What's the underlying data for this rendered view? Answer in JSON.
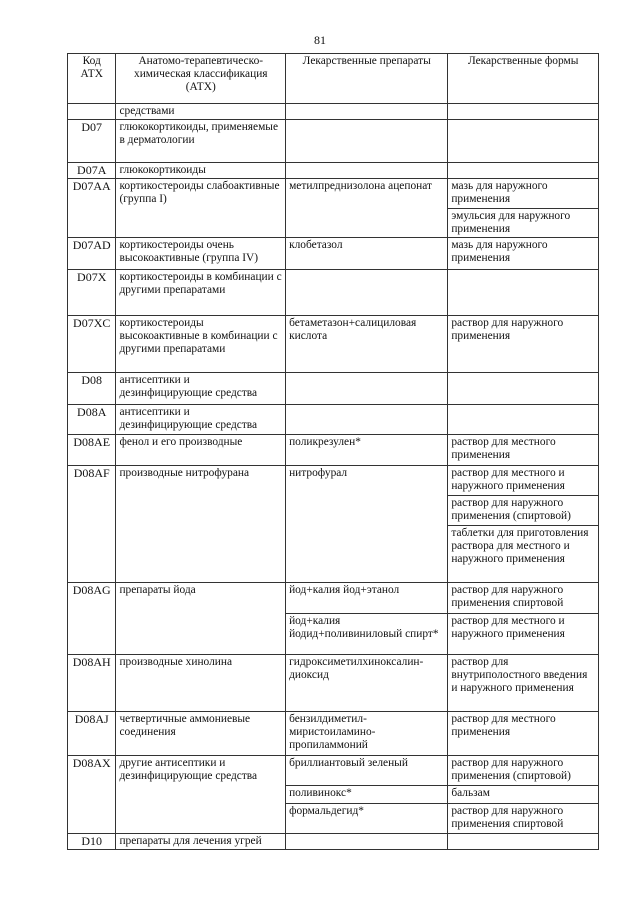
{
  "page_number": "81",
  "headers": [
    "Код АТХ",
    "Анатомо-терапевтическо-химическая классификация (АТХ)",
    "Лекарственные препараты",
    "Лекарственные формы"
  ],
  "groups": [
    {
      "code": "",
      "name": "средствами",
      "drugs": []
    },
    {
      "code": "D07",
      "name": "глюкокортикоиды, применяемые в дерматологии",
      "drugs": []
    },
    {
      "code": "D07A",
      "name": "глюкокортикоиды",
      "drugs": []
    },
    {
      "code": "D07AA",
      "name": "кортикостероиды слабоактивные (группа I)",
      "drugs": [
        {
          "name": "метилпреднизолона ацепонат",
          "forms": [
            "мазь для наружного применения",
            "эмульсия для наружного применения"
          ]
        }
      ]
    },
    {
      "code": "D07AD",
      "name": "кортикостероиды очень высокоактивные (группа IV)",
      "drugs": [
        {
          "name": "клобетазол",
          "forms": [
            "мазь для наружного применения"
          ]
        }
      ]
    },
    {
      "code": "D07X",
      "name": "кортикостероиды в комбинации с другими препаратами",
      "drugs": []
    },
    {
      "code": "D07XC",
      "name": "кортикостероиды высокоактивные в комбинации с другими препаратами",
      "drugs": [
        {
          "name": "бетаметазон+салициловая кислота",
          "forms": [
            "раствор для наружного применения"
          ]
        }
      ]
    },
    {
      "code": "D08",
      "name": "антисептики и дезинфицирующие средства",
      "drugs": []
    },
    {
      "code": "D08A",
      "name": "антисептики и дезинфицирующие средства",
      "drugs": []
    },
    {
      "code": "D08AE",
      "name": "фенол и его производные",
      "drugs": [
        {
          "name": "поликрезулен*",
          "forms": [
            "раствор для местного применения"
          ]
        }
      ]
    },
    {
      "code": "D08AF",
      "name": "производные нитрофурана",
      "drugs": [
        {
          "name": "нитрофурал",
          "forms": [
            "раствор для местного и наружного применения",
            "раствор для наружного применения (спиртовой)",
            "таблетки для приготовления раствора для местного и наружного применения"
          ]
        }
      ]
    },
    {
      "code": "D08AG",
      "name": "препараты йода",
      "drugs": [
        {
          "name": "йод+калия йод+этанол",
          "forms": [
            "раствор для наружного применения спиртовой"
          ]
        },
        {
          "name": "йод+калия йодид+поливиниловый спирт*",
          "forms": [
            "раствор для местного и наружного применения"
          ]
        }
      ]
    },
    {
      "code": "D08AH",
      "name": "производные хинолина",
      "drugs": [
        {
          "name": "гидроксиметилхиноксалин-диоксид",
          "forms": [
            "раствор для внутриполостного введения и наружного применения"
          ]
        }
      ]
    },
    {
      "code": "D08AJ",
      "name": "четвертичные аммониевые соединения",
      "drugs": [
        {
          "name": "бензилдиметил-миристоиламино-пропиламмоний",
          "forms": [
            "раствор для местного применения"
          ]
        }
      ]
    },
    {
      "code": "D08AX",
      "name": "другие антисептики и дезинфицирующие средства",
      "drugs": [
        {
          "name": "бриллиантовый зеленый",
          "forms": [
            "раствор для наружного применения (спиртовой)"
          ]
        },
        {
          "name": "поливинокс*",
          "forms": [
            "бальзам"
          ]
        },
        {
          "name": "формальдегид*",
          "forms": [
            "раствор для наружного применения спиртовой"
          ]
        }
      ]
    },
    {
      "code": "D10",
      "name": "препараты для лечения угрей",
      "drugs": []
    }
  ]
}
